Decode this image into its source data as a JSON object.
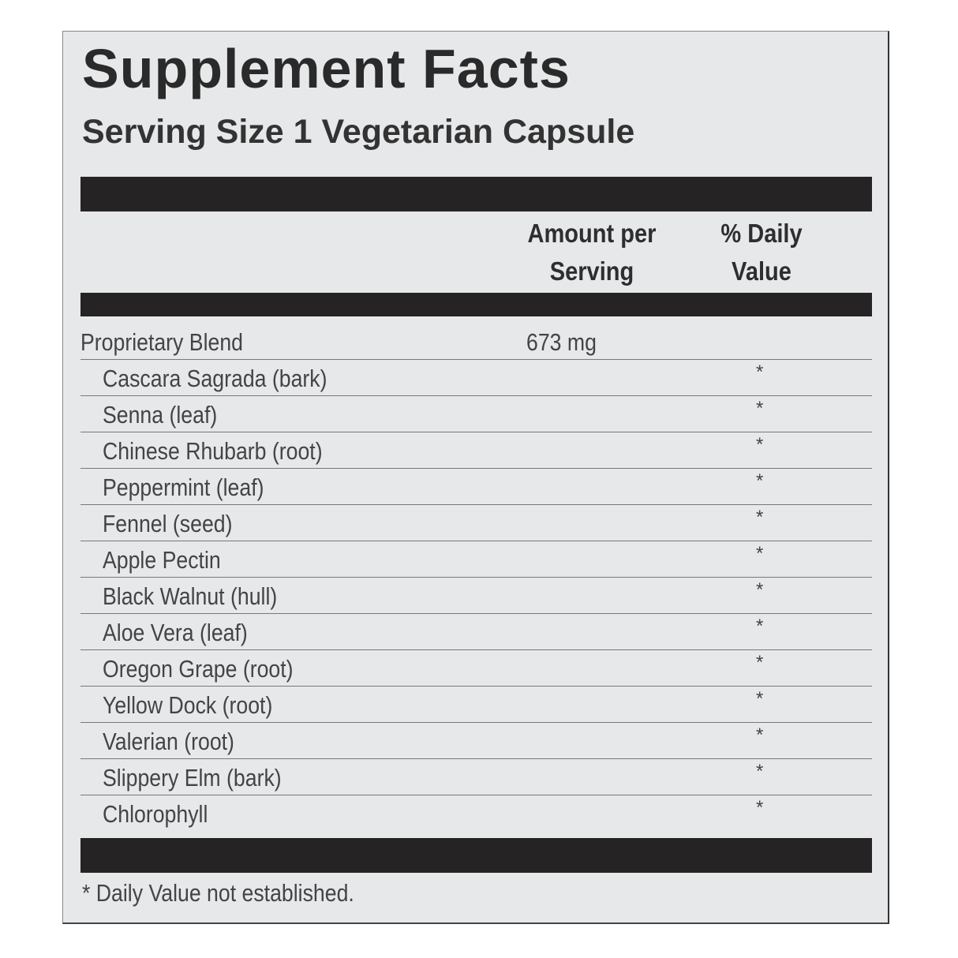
{
  "title": "Supplement Facts",
  "serving_size": "Serving Size 1 Vegetarian Capsule",
  "headers": {
    "amount": [
      "Amount per",
      "Serving"
    ],
    "daily_value": [
      "% Daily",
      "Value"
    ]
  },
  "blend": {
    "name": "Proprietary Blend",
    "amount": "673  mg"
  },
  "ingredients": [
    {
      "name": "Cascara Sagrada (bark)",
      "dv": "*"
    },
    {
      "name": "Senna (leaf)",
      "dv": "*"
    },
    {
      "name": "Chinese Rhubarb (root)",
      "dv": "*"
    },
    {
      "name": "Peppermint (leaf)",
      "dv": "*"
    },
    {
      "name": "Fennel (seed)",
      "dv": "*"
    },
    {
      "name": "Apple Pectin",
      "dv": "*"
    },
    {
      "name": "Black Walnut (hull)",
      "dv": "*"
    },
    {
      "name": "Aloe Vera (leaf)",
      "dv": "*"
    },
    {
      "name": "Oregon Grape (root)",
      "dv": "*"
    },
    {
      "name": "Yellow Dock (root)",
      "dv": "*"
    },
    {
      "name": "Valerian (root)",
      "dv": "*"
    },
    {
      "name": "Slippery Elm (bark)",
      "dv": "*"
    },
    {
      "name": "Chlorophyll",
      "dv": "*"
    }
  ],
  "footnote": "* Daily Value not established."
}
